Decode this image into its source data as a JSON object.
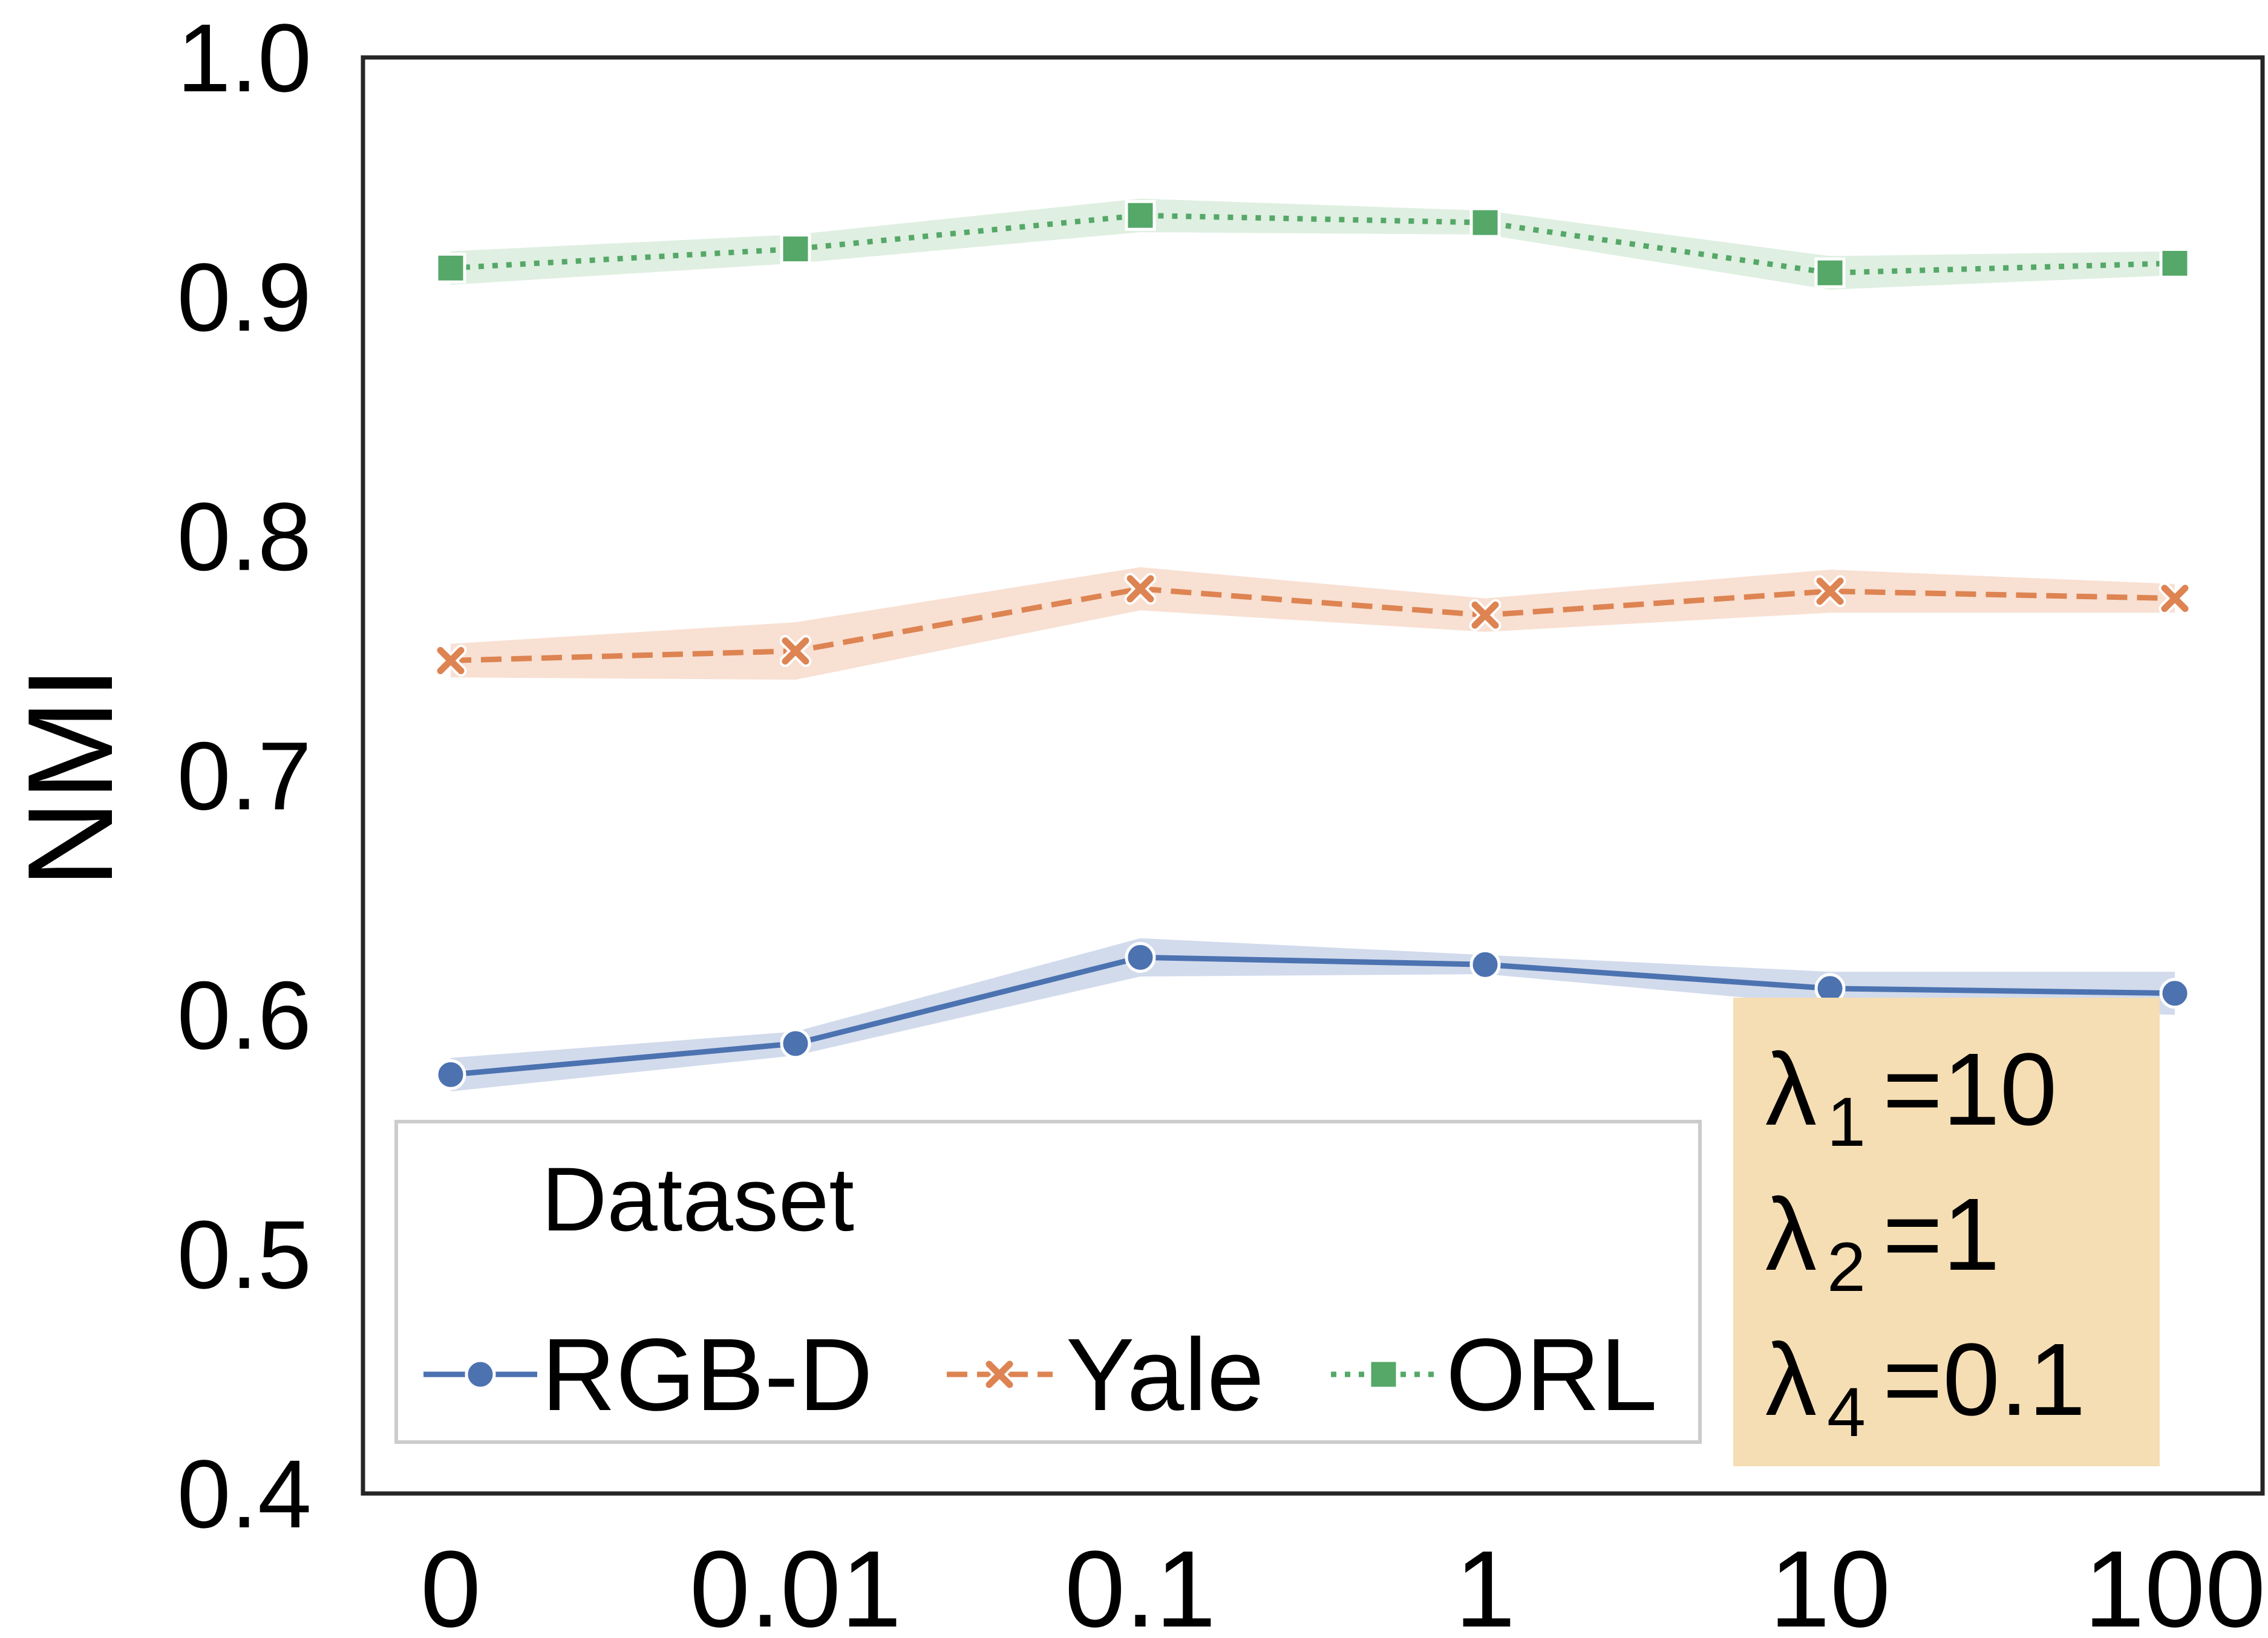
{
  "chart_data": {
    "type": "line",
    "title": "",
    "xlabel": "",
    "ylabel": "NMI",
    "categories": [
      "0",
      "0.01",
      "0.1",
      "1",
      "10",
      "100"
    ],
    "ylim": [
      0.4,
      1.0
    ],
    "yticks": [
      "1.0",
      "0.9",
      "0.8",
      "0.7",
      "0.6",
      "0.5",
      "0.4"
    ],
    "grid": false,
    "legend": {
      "title": "Dataset",
      "position": "lower-left"
    },
    "series": [
      {
        "name": "RGB-D",
        "color": "#4c72b0",
        "fill": "#c3cfe6",
        "line_style": "solid",
        "marker": "circle",
        "values": [
          0.575,
          0.588,
          0.624,
          0.621,
          0.611,
          0.609
        ],
        "band": [
          0.007,
          0.005,
          0.008,
          0.004,
          0.007,
          0.009
        ]
      },
      {
        "name": "Yale",
        "color": "#dd8452",
        "fill": "#f6d6c4",
        "line_style": "dashed",
        "marker": "x",
        "values": [
          0.748,
          0.752,
          0.778,
          0.767,
          0.777,
          0.774
        ],
        "band": [
          0.007,
          0.012,
          0.009,
          0.007,
          0.009,
          0.006
        ]
      },
      {
        "name": "ORL",
        "color": "#55a868",
        "fill": "#d4ead7",
        "line_style": "dotted",
        "marker": "square",
        "values": [
          0.912,
          0.92,
          0.934,
          0.931,
          0.91,
          0.914
        ],
        "band": [
          0.007,
          0.006,
          0.007,
          0.005,
          0.007,
          0.005
        ]
      }
    ],
    "annotation": {
      "background": "#f5deb3",
      "lines": [
        {
          "symbol": "λ",
          "subscript": "1",
          "value": "=10"
        },
        {
          "symbol": "λ",
          "subscript": "2",
          "value": "=1"
        },
        {
          "symbol": "λ",
          "subscript": "4",
          "value": "=0.1"
        }
      ]
    }
  }
}
